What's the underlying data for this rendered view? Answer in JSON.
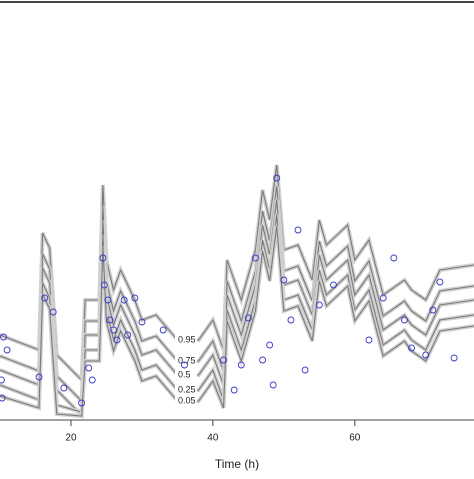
{
  "chart_data": {
    "type": "vpc",
    "xlabel": "Time (h)",
    "xlim": [
      10,
      76.8
    ],
    "xticks": [
      20,
      40,
      60
    ],
    "ylim": [
      0,
      418
    ],
    "x": [
      10,
      15.5,
      16,
      17,
      18,
      21.5,
      22,
      24,
      24.5,
      25,
      26,
      27,
      29,
      30,
      32,
      35,
      38,
      40,
      41.5,
      42,
      44,
      46,
      47,
      48,
      49,
      50,
      52,
      54,
      55,
      56,
      59,
      60,
      62,
      64,
      66,
      67,
      68,
      70,
      72,
      76.8
    ],
    "series": [
      {
        "name": "0.95",
        "color": "#7a7a7a",
        "values": [
          85,
          70,
          187,
          172,
          65,
          40,
          120,
          120,
          235,
          160,
          130,
          150,
          120,
          100,
          105,
          80,
          80,
          100,
          70,
          160,
          120,
          170,
          230,
          200,
          255,
          170,
          175,
          140,
          200,
          175,
          195,
          160,
          180,
          125,
          135,
          140,
          130,
          120,
          150,
          155
        ]
      },
      {
        "name": "0.75",
        "color": "#7a7a7a",
        "values": [
          64,
          49,
          166,
          151,
          44,
          19,
          99,
          99,
          214,
          139,
          109,
          129,
          99,
          79,
          84,
          59,
          59,
          79,
          49,
          139,
          99,
          149,
          209,
          179,
          234,
          149,
          154,
          119,
          179,
          154,
          174,
          139,
          159,
          104,
          114,
          119,
          109,
          99,
          129,
          134
        ]
      },
      {
        "name": "0.5",
        "color": "#7a7a7a",
        "values": [
          50,
          35,
          152,
          137,
          30,
          5,
          85,
          85,
          200,
          125,
          95,
          115,
          85,
          65,
          70,
          45,
          45,
          65,
          35,
          125,
          85,
          135,
          195,
          165,
          220,
          135,
          140,
          105,
          165,
          140,
          160,
          125,
          145,
          90,
          100,
          105,
          95,
          85,
          115,
          120
        ]
      },
      {
        "name": "0.25",
        "color": "#7a7a7a",
        "values": [
          35,
          20,
          137,
          122,
          15,
          8,
          70,
          70,
          185,
          110,
          80,
          100,
          70,
          50,
          55,
          30,
          30,
          50,
          20,
          110,
          70,
          120,
          180,
          150,
          205,
          120,
          125,
          90,
          150,
          125,
          145,
          110,
          130,
          75,
          85,
          90,
          80,
          70,
          100,
          105
        ]
      },
      {
        "name": "0.05",
        "color": "#7a7a7a",
        "values": [
          24,
          12,
          126,
          111,
          6,
          4,
          59,
          59,
          174,
          99,
          69,
          89,
          59,
          39,
          44,
          19,
          19,
          39,
          12,
          99,
          59,
          109,
          169,
          139,
          194,
          109,
          114,
          79,
          139,
          114,
          134,
          99,
          119,
          64,
          74,
          79,
          69,
          59,
          89,
          94
        ]
      }
    ],
    "observed": {
      "color": "#3a3acc",
      "x": [
        10.5,
        11,
        10.2,
        10.3,
        15.5,
        16.3,
        17.5,
        19,
        21.5,
        22.5,
        23,
        24.5,
        24.7,
        25.2,
        25.5,
        26,
        26.5,
        27.5,
        28,
        29,
        30,
        33,
        36,
        41.5,
        43,
        44,
        45,
        46,
        47,
        48,
        48.5,
        49,
        50,
        51,
        52,
        53,
        55,
        57,
        62,
        64,
        65.5,
        67,
        68,
        70,
        71,
        72,
        74
      ],
      "values": [
        83,
        70,
        40,
        22,
        43,
        122,
        108,
        32,
        17,
        52,
        40,
        162,
        135,
        120,
        100,
        90,
        80,
        120,
        85,
        122,
        98,
        90,
        55,
        60,
        30,
        55,
        102,
        162,
        60,
        75,
        35,
        242,
        140,
        100,
        190,
        50,
        115,
        135,
        80,
        122,
        162,
        100,
        72,
        65,
        110,
        138,
        62
      ]
    }
  }
}
